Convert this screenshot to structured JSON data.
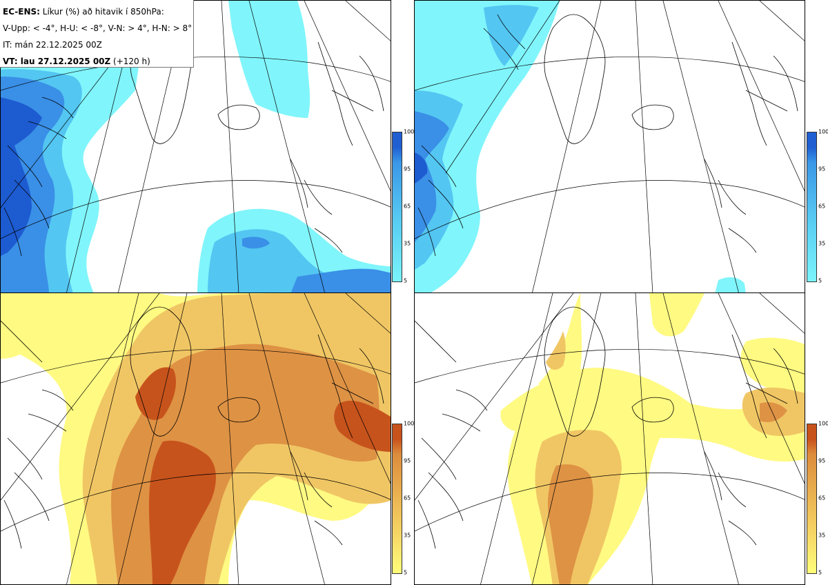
{
  "info": {
    "line1_bold": "EC-ENS:",
    "line1_rest": " Líkur (%) að hitavik í 850hPa:",
    "line2": "V-Upp: < -4°, H-U: < -8°, V-N: > 4°, H-N: > 8°",
    "line3": "IT: mán 22.12.2025 00Z",
    "line4_bold": "VT: lau 27.12.2025 00Z",
    "line4_rest": " (+120 h)"
  },
  "panels": [
    {
      "id": "V-Upp",
      "threshold": "< -4°",
      "palette": "cold"
    },
    {
      "id": "H-U",
      "threshold": "< -8°",
      "palette": "cold"
    },
    {
      "id": "V-N",
      "threshold": "> 4°",
      "palette": "warm"
    },
    {
      "id": "H-N",
      "threshold": "> 8°",
      "palette": "warm"
    }
  ],
  "colorbars": {
    "ticks": [
      "100",
      "95",
      "65",
      "35",
      "5"
    ],
    "cold": {
      "colors": [
        "#7af4fa",
        "#58cdf3",
        "#3a97e7",
        "#1f5fd2"
      ]
    },
    "warm": {
      "colors": [
        "#fffd7a",
        "#f0c35a",
        "#dc8c3c",
        "#c8521c"
      ]
    }
  },
  "colors": {
    "cold_light": "#80f5fb",
    "cold_mid": "#53c6f2",
    "cold_dark": "#3a8fe6",
    "cold_darkest": "#1d5bd0",
    "warm_light": "#fffa82",
    "warm_mid": "#f0c664",
    "warm_dark": "#de9244",
    "warm_darkest": "#c7531c"
  }
}
